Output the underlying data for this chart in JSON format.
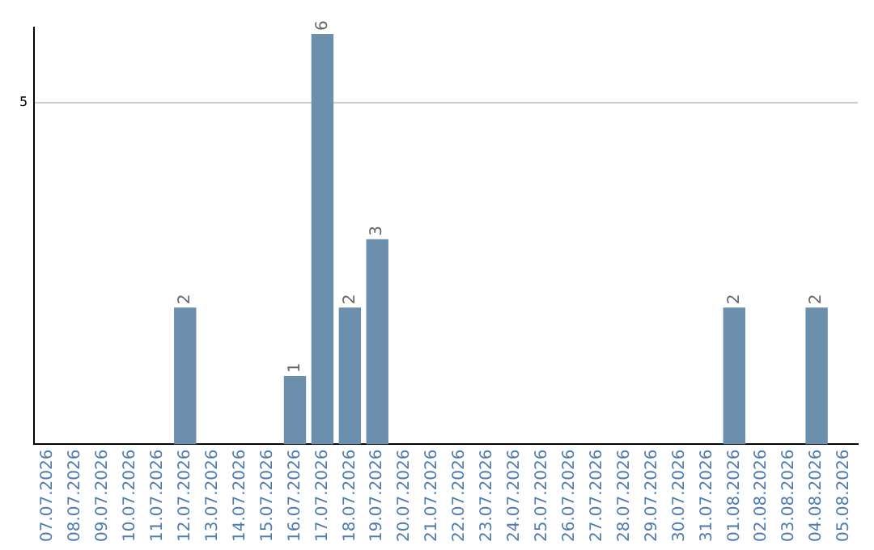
{
  "chart_data": {
    "type": "bar",
    "categories": [
      "07.07.2026",
      "08.07.2026",
      "09.07.2026",
      "10.07.2026",
      "11.07.2026",
      "12.07.2026",
      "13.07.2026",
      "14.07.2026",
      "15.07.2026",
      "16.07.2026",
      "17.07.2026",
      "18.07.2026",
      "19.07.2026",
      "20.07.2026",
      "21.07.2026",
      "22.07.2026",
      "23.07.2026",
      "24.07.2026",
      "25.07.2026",
      "26.07.2026",
      "27.07.2026",
      "28.07.2026",
      "29.07.2026",
      "30.07.2026",
      "31.07.2026",
      "01.08.2026",
      "02.08.2026",
      "03.08.2026",
      "04.08.2026",
      "05.08.2026"
    ],
    "values": [
      0,
      0,
      0,
      0,
      0,
      2,
      0,
      0,
      0,
      1,
      6,
      2,
      3,
      0,
      0,
      0,
      0,
      0,
      0,
      0,
      0,
      0,
      0,
      0,
      0,
      2,
      0,
      0,
      2,
      0
    ],
    "value_labels": [
      null,
      null,
      null,
      null,
      null,
      "2",
      null,
      null,
      null,
      "1",
      "6",
      "2",
      "3",
      null,
      null,
      null,
      null,
      null,
      null,
      null,
      null,
      null,
      null,
      null,
      null,
      "2",
      null,
      null,
      "2",
      null
    ],
    "color": "#6d8fae",
    "ylim": [
      0,
      6.1
    ],
    "yticks": [
      5
    ],
    "grid": "y",
    "legend": false
  }
}
